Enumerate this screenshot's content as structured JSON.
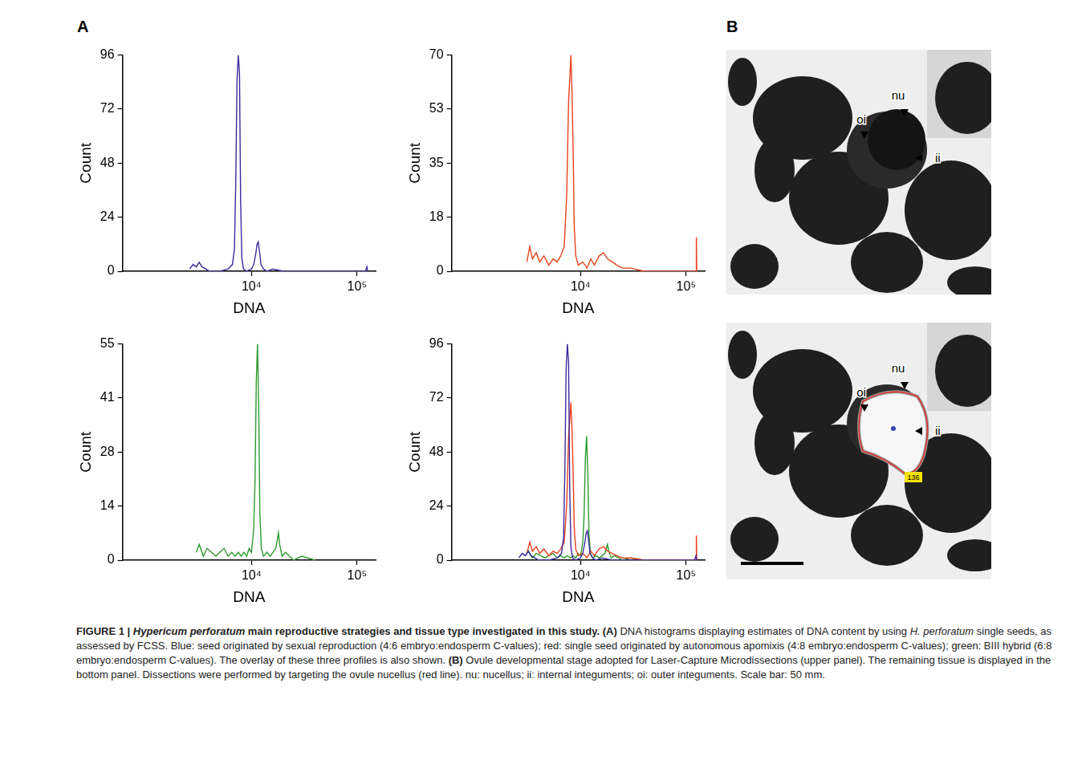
{
  "chart_data": [
    {
      "type": "line",
      "x_label": "DNA",
      "y_label": "Count",
      "log": "x",
      "grid": false,
      "xlim": [
        600,
        150000
      ],
      "xticks": [
        {
          "value": 10000,
          "label": "10⁴"
        },
        {
          "value": 100000,
          "label": "10⁵"
        }
      ],
      "ylim": [
        0,
        96
      ],
      "yticks": [
        0,
        24,
        48,
        72,
        96
      ],
      "series": [
        {
          "color": "#3b2a9e",
          "x": [
            2600,
            2800,
            3000,
            3200,
            3400,
            3700,
            4000,
            5000,
            6000,
            6600,
            6900,
            7100,
            7300,
            7500,
            7700,
            7900,
            8100,
            8400,
            9000,
            10000,
            10500,
            11000,
            11300,
            11600,
            11900,
            12300,
            13000,
            14000,
            16000,
            20000,
            30000,
            60000,
            120000,
            124000,
            126000
          ],
          "values": [
            1,
            3,
            2,
            4,
            2,
            1,
            0,
            0,
            1,
            3,
            10,
            40,
            85,
            96,
            88,
            30,
            6,
            1,
            0,
            1,
            3,
            8,
            12,
            13,
            9,
            3,
            1,
            0,
            1,
            0,
            0,
            0,
            0,
            2,
            0
          ]
        }
      ]
    },
    {
      "type": "line",
      "x_label": "DNA",
      "y_label": "Count",
      "log": "x",
      "grid": false,
      "xlim": [
        600,
        150000
      ],
      "xticks": [
        {
          "value": 10000,
          "label": "10⁴"
        },
        {
          "value": 100000,
          "label": "10⁵"
        }
      ],
      "ylim": [
        0,
        70
      ],
      "yticks": [
        0,
        {
          "value": 17.5,
          "label": "18"
        },
        35,
        {
          "value": 52.5,
          "label": "53"
        },
        70
      ],
      "series": [
        {
          "color": "#e8401c",
          "x": [
            3100,
            3300,
            3500,
            3800,
            4100,
            4500,
            5000,
            5500,
            6000,
            6500,
            7000,
            7400,
            7700,
            7900,
            8100,
            8300,
            8500,
            8700,
            9000,
            9500,
            10500,
            11500,
            12500,
            13500,
            15000,
            16500,
            18000,
            20000,
            22000,
            25000,
            30000,
            40000,
            60000,
            100000,
            124000,
            125000,
            126000
          ],
          "values": [
            3,
            8,
            4,
            6,
            3,
            5,
            2,
            4,
            3,
            5,
            8,
            25,
            55,
            62,
            70,
            58,
            40,
            15,
            5,
            2,
            3,
            1,
            4,
            2,
            5,
            6,
            4,
            3,
            2,
            1,
            1,
            0,
            0,
            0,
            0,
            11,
            0
          ]
        }
      ]
    },
    {
      "type": "line",
      "x_label": "DNA",
      "y_label": "Count",
      "log": "x",
      "grid": false,
      "xlim": [
        600,
        150000
      ],
      "xticks": [
        {
          "value": 10000,
          "label": "10⁴"
        },
        {
          "value": 100000,
          "label": "10⁵"
        }
      ],
      "ylim": [
        0,
        55
      ],
      "yticks": [
        0,
        {
          "value": 13.75,
          "label": "14"
        },
        {
          "value": 27.5,
          "label": "28"
        },
        {
          "value": 41.25,
          "label": "41"
        },
        55
      ],
      "series": [
        {
          "color": "#2e9a2e",
          "x": [
            3000,
            3200,
            3500,
            3800,
            4200,
            4600,
            5000,
            5500,
            6000,
            6500,
            7000,
            7500,
            8000,
            8500,
            9000,
            9500,
            10000,
            10500,
            10800,
            11100,
            11400,
            11700,
            12000,
            12400,
            13000,
            14000,
            15000,
            16000,
            17000,
            17500,
            18000,
            18500,
            19500,
            21000,
            25000,
            30000,
            40000
          ],
          "values": [
            2,
            4,
            1,
            3,
            2,
            1,
            2,
            3,
            1,
            2,
            1,
            2,
            1,
            2,
            1,
            3,
            2,
            8,
            20,
            45,
            55,
            40,
            12,
            3,
            1,
            2,
            1,
            2,
            3,
            5,
            7,
            4,
            1,
            2,
            0,
            1,
            0
          ]
        }
      ]
    },
    {
      "type": "line",
      "x_label": "DNA",
      "y_label": "Count",
      "log": "x",
      "grid": false,
      "xlim": [
        600,
        150000
      ],
      "xticks": [
        {
          "value": 10000,
          "label": "10⁴"
        },
        {
          "value": 100000,
          "label": "10⁵"
        }
      ],
      "ylim": [
        0,
        96
      ],
      "yticks": [
        0,
        24,
        48,
        72,
        96
      ],
      "series": [
        {
          "color": "#3b2a9e",
          "x": [
            2600,
            2800,
            3000,
            3200,
            3400,
            3700,
            4000,
            5000,
            6000,
            6600,
            6900,
            7100,
            7300,
            7500,
            7700,
            7900,
            8100,
            8400,
            9000,
            10000,
            10500,
            11000,
            11300,
            11600,
            11900,
            12300,
            13000,
            14000,
            16000,
            20000,
            30000,
            60000,
            120000,
            124000,
            126000
          ],
          "values": [
            1,
            3,
            2,
            4,
            2,
            1,
            0,
            0,
            1,
            3,
            10,
            40,
            85,
            96,
            88,
            30,
            6,
            1,
            0,
            1,
            3,
            8,
            12,
            13,
            9,
            3,
            1,
            0,
            1,
            0,
            0,
            0,
            0,
            2,
            0
          ]
        },
        {
          "color": "#e8401c",
          "x": [
            3100,
            3300,
            3500,
            3800,
            4100,
            4500,
            5000,
            5500,
            6000,
            6500,
            7000,
            7400,
            7700,
            7900,
            8100,
            8300,
            8500,
            8700,
            9000,
            9500,
            10500,
            11500,
            12500,
            13500,
            15000,
            16500,
            18000,
            20000,
            22000,
            25000,
            30000,
            40000,
            60000,
            100000,
            124000,
            125000,
            126000
          ],
          "values": [
            3,
            8,
            4,
            6,
            3,
            5,
            2,
            4,
            3,
            5,
            8,
            25,
            55,
            62,
            70,
            58,
            40,
            15,
            5,
            2,
            3,
            1,
            4,
            2,
            5,
            6,
            4,
            3,
            2,
            1,
            1,
            0,
            0,
            0,
            0,
            11,
            0
          ]
        },
        {
          "color": "#2e9a2e",
          "x": [
            3000,
            3200,
            3500,
            3800,
            4200,
            4600,
            5000,
            5500,
            6000,
            6500,
            7000,
            7500,
            8000,
            8500,
            9000,
            9500,
            10000,
            10500,
            10800,
            11100,
            11400,
            11700,
            12000,
            12400,
            13000,
            14000,
            15000,
            16000,
            17000,
            17500,
            18000,
            18500,
            19500,
            21000,
            25000,
            30000,
            40000
          ],
          "values": [
            2,
            4,
            1,
            3,
            2,
            1,
            2,
            3,
            1,
            2,
            1,
            2,
            1,
            2,
            1,
            3,
            2,
            8,
            20,
            45,
            55,
            40,
            12,
            3,
            1,
            2,
            1,
            2,
            3,
            5,
            7,
            4,
            1,
            2,
            0,
            1,
            0
          ]
        }
      ]
    }
  ],
  "figure": {
    "panel_a": {
      "letter": "A"
    },
    "panel_b": {
      "letter": "B",
      "images": [
        {
          "labels": [
            "nu",
            "oi",
            "ii"
          ]
        },
        {
          "labels": [
            "nu",
            "oi",
            "ii"
          ],
          "outline_color": "#e0302a",
          "outline_tag": "136"
        }
      ]
    },
    "caption": [
      {
        "text": "FIGURE 1 | ",
        "font": "bold"
      },
      {
        "text": "Hypericum perforatum",
        "font": "bold italic"
      },
      {
        "text": " main reproductive strategies and tissue type investigated in this study. ",
        "font": "bold"
      },
      {
        "text": "(A)",
        "font": "bold"
      },
      {
        "text": " DNA histograms displaying estimates of DNA content by using ",
        "font": "normal"
      },
      {
        "text": "H. perforatum",
        "font": "italic"
      },
      {
        "text": " single seeds, as assessed by FCSS. Blue: seed originated by sexual reproduction (4:6 embryo:endosperm C-values); red: single seed originated by autonomous apomixis (4:8 embryo:endosperm C-values); green: BIII hybrid (6:8 embryo:endosperm C-values). The overlay of these three profiles is also shown. ",
        "font": "normal"
      },
      {
        "text": "(B)",
        "font": "bold"
      },
      {
        "text": " Ovule developmental stage adopted for Laser-Capture Microdissections (upper panel). The remaining tissue is displayed in the bottom panel. Dissections were performed by targeting the ovule nucellus (red line). nu: nucellus; ii: internal integuments; oi: outer integuments. Scale bar: 50 mm.",
        "font": "normal"
      }
    ]
  }
}
